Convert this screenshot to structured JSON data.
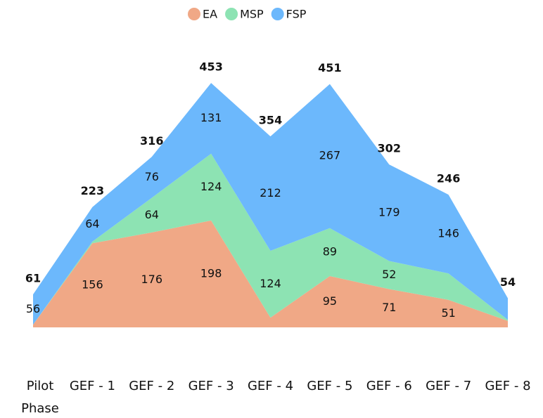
{
  "chart_data": {
    "type": "stacked_area",
    "categories": [
      "Pilot Phase",
      "GEF - 1",
      "GEF - 2",
      "GEF - 3",
      "GEF - 4",
      "GEF - 5",
      "GEF - 6",
      "GEF - 7",
      "GEF - 8"
    ],
    "series": [
      {
        "name": "EA",
        "color": "#f0a886",
        "values": [
          5,
          156,
          176,
          198,
          18,
          95,
          71,
          51,
          12
        ],
        "value_labels": [
          null,
          "156",
          "176",
          "198",
          null,
          "95",
          "71",
          "51",
          null
        ]
      },
      {
        "name": "MSP",
        "color": "#8de3b3",
        "values": [
          0,
          3,
          64,
          124,
          124,
          89,
          52,
          49,
          2
        ],
        "value_labels": [
          null,
          null,
          "64",
          "124",
          "124",
          "89",
          "52",
          null,
          null
        ]
      },
      {
        "name": "FSP",
        "color": "#6cb8fc",
        "values": [
          56,
          64,
          76,
          131,
          212,
          267,
          179,
          146,
          40
        ],
        "value_labels": [
          "56",
          "64",
          "76",
          "131",
          "212",
          "267",
          "179",
          "146",
          null
        ]
      }
    ],
    "totals": [
      61,
      223,
      316,
      453,
      354,
      451,
      302,
      246,
      54
    ],
    "ylim": [
      0,
      500
    ],
    "legend": "top"
  }
}
